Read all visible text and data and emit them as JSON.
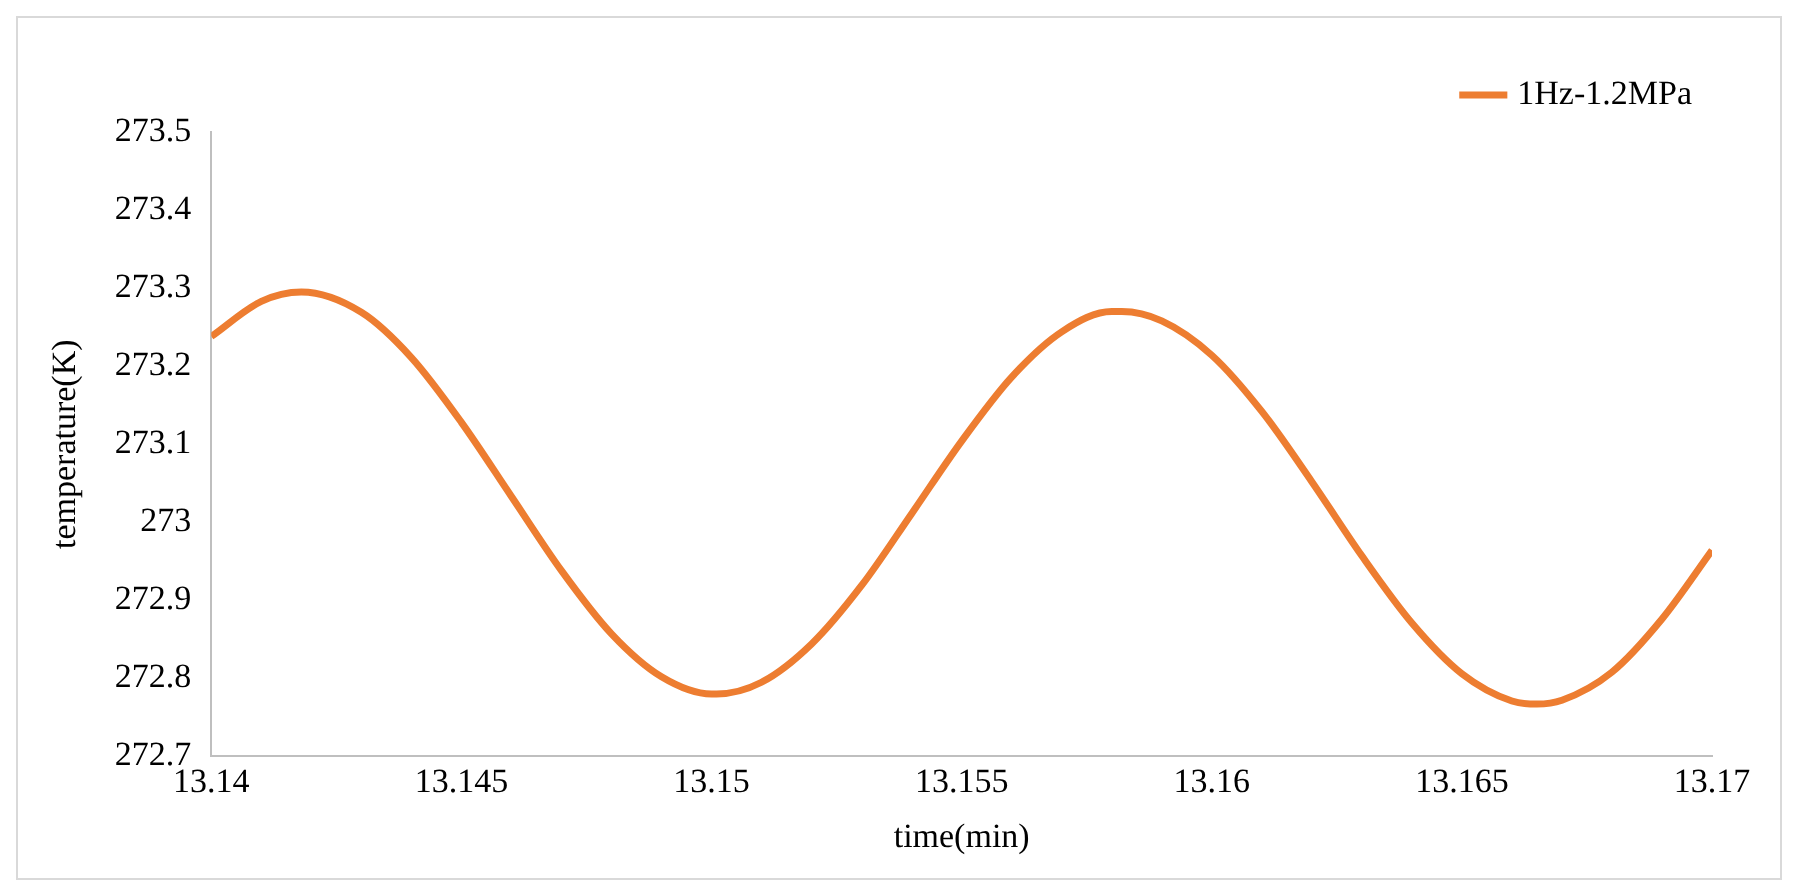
{
  "chart_data": {
    "type": "line",
    "xlabel": "time(min)",
    "ylabel": "temperature(K)",
    "xlim": [
      13.14,
      13.17
    ],
    "xticks": [
      13.14,
      13.145,
      13.15,
      13.155,
      13.16,
      13.165,
      13.17
    ],
    "ylim": [
      272.7,
      273.5
    ],
    "yticks": [
      272.7,
      272.8,
      272.9,
      273,
      273.1,
      273.2,
      273.3,
      273.4,
      273.5
    ],
    "grid": false,
    "legend": "top right",
    "marker": "none",
    "line_style": "solid",
    "series": [
      {
        "name": "1Hz-1.2MPa",
        "color": "#ed7d31",
        "x": [
          13.14,
          13.141,
          13.1418,
          13.143,
          13.144,
          13.145,
          13.146,
          13.147,
          13.148,
          13.149,
          13.15,
          13.1501,
          13.151,
          13.152,
          13.153,
          13.154,
          13.155,
          13.156,
          13.157,
          13.158,
          13.1582,
          13.159,
          13.16,
          13.161,
          13.162,
          13.163,
          13.164,
          13.165,
          13.166,
          13.1665,
          13.167,
          13.168,
          13.169,
          13.17
        ],
        "values": [
          273.238,
          273.283,
          273.295,
          273.269,
          273.211,
          273.128,
          273.033,
          272.938,
          272.857,
          272.802,
          272.78,
          272.78,
          272.795,
          272.844,
          272.919,
          273.011,
          273.104,
          273.186,
          273.244,
          273.27,
          273.27,
          273.258,
          273.214,
          273.142,
          273.052,
          272.957,
          272.871,
          272.806,
          272.771,
          272.767,
          272.772,
          272.808,
          272.876,
          272.964
        ]
      }
    ]
  }
}
